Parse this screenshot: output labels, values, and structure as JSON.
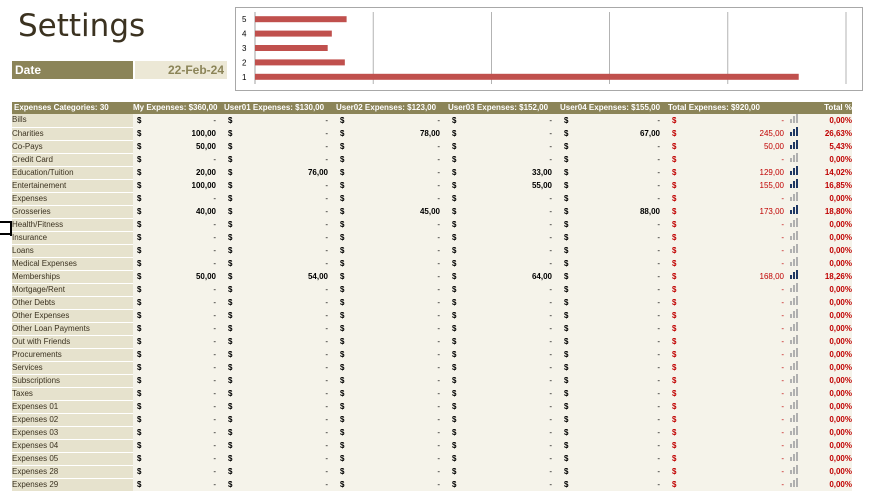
{
  "title": "Settings",
  "date": {
    "label": "Date",
    "value": "22-Feb-24"
  },
  "chart_data": {
    "type": "bar",
    "orientation": "horizontal",
    "categories": [
      "1",
      "2",
      "3",
      "4",
      "5"
    ],
    "values": [
      920,
      152,
      123,
      130,
      155
    ],
    "xlim": [
      0,
      1000
    ],
    "grid": true,
    "colors": {
      "bar": "#c0504d",
      "grid": "#a0a0a0"
    }
  },
  "table": {
    "headers": [
      "Expenses Categories: 30",
      "My Expenses: $360,00",
      "User01 Expenses: $130,00",
      "User02 Expenses: $123,00",
      "User03 Expenses: $152,00",
      "User04 Expenses: $155,00",
      "Total Expenses: $920,00",
      "",
      "Total %"
    ],
    "rows": [
      {
        "cat": "Bills",
        "my": "-",
        "u1": "-",
        "u2": "-",
        "u3": "-",
        "u4": "-",
        "total": "-",
        "icon": "light",
        "pct": "0,00%"
      },
      {
        "cat": "Charities",
        "my": "100,00",
        "u1": "-",
        "u2": "78,00",
        "u3": "-",
        "u4": "67,00",
        "total": "245,00",
        "icon": "dark",
        "pct": "26,63%"
      },
      {
        "cat": "Co-Pays",
        "my": "50,00",
        "u1": "-",
        "u2": "-",
        "u3": "-",
        "u4": "-",
        "total": "50,00",
        "icon": "dark",
        "pct": "5,43%"
      },
      {
        "cat": "Credit Card",
        "my": "-",
        "u1": "-",
        "u2": "-",
        "u3": "-",
        "u4": "-",
        "total": "-",
        "icon": "light",
        "pct": "0,00%"
      },
      {
        "cat": "Education/Tuition",
        "my": "20,00",
        "u1": "76,00",
        "u2": "-",
        "u3": "33,00",
        "u4": "-",
        "total": "129,00",
        "icon": "dark",
        "pct": "14,02%"
      },
      {
        "cat": "Entertainement",
        "my": "100,00",
        "u1": "-",
        "u2": "-",
        "u3": "55,00",
        "u4": "-",
        "total": "155,00",
        "icon": "dark",
        "pct": "16,85%"
      },
      {
        "cat": "Expenses",
        "my": "-",
        "u1": "-",
        "u2": "-",
        "u3": "-",
        "u4": "-",
        "total": "-",
        "icon": "light",
        "pct": "0,00%"
      },
      {
        "cat": "Grosseries",
        "my": "40,00",
        "u1": "-",
        "u2": "45,00",
        "u3": "-",
        "u4": "88,00",
        "total": "173,00",
        "icon": "dark",
        "pct": "18,80%"
      },
      {
        "cat": "Health/Fitness",
        "my": "-",
        "u1": "-",
        "u2": "-",
        "u3": "-",
        "u4": "-",
        "total": "-",
        "icon": "light",
        "pct": "0,00%"
      },
      {
        "cat": "Insurance",
        "my": "-",
        "u1": "-",
        "u2": "-",
        "u3": "-",
        "u4": "-",
        "total": "-",
        "icon": "light",
        "pct": "0,00%"
      },
      {
        "cat": "Loans",
        "my": "-",
        "u1": "-",
        "u2": "-",
        "u3": "-",
        "u4": "-",
        "total": "-",
        "icon": "light",
        "pct": "0,00%"
      },
      {
        "cat": "Medical Expenses",
        "my": "-",
        "u1": "-",
        "u2": "-",
        "u3": "-",
        "u4": "-",
        "total": "-",
        "icon": "light",
        "pct": "0,00%"
      },
      {
        "cat": "Memberships",
        "my": "50,00",
        "u1": "54,00",
        "u2": "-",
        "u3": "64,00",
        "u4": "-",
        "total": "168,00",
        "icon": "dark",
        "pct": "18,26%"
      },
      {
        "cat": "Mortgage/Rent",
        "my": "-",
        "u1": "-",
        "u2": "-",
        "u3": "-",
        "u4": "-",
        "total": "-",
        "icon": "light",
        "pct": "0,00%"
      },
      {
        "cat": "Other Debts",
        "my": "-",
        "u1": "-",
        "u2": "-",
        "u3": "-",
        "u4": "-",
        "total": "-",
        "icon": "light",
        "pct": "0,00%"
      },
      {
        "cat": "Other Expenses",
        "my": "-",
        "u1": "-",
        "u2": "-",
        "u3": "-",
        "u4": "-",
        "total": "-",
        "icon": "light",
        "pct": "0,00%"
      },
      {
        "cat": "Other Loan Payments",
        "my": "-",
        "u1": "-",
        "u2": "-",
        "u3": "-",
        "u4": "-",
        "total": "-",
        "icon": "light",
        "pct": "0,00%"
      },
      {
        "cat": "Out with Friends",
        "my": "-",
        "u1": "-",
        "u2": "-",
        "u3": "-",
        "u4": "-",
        "total": "-",
        "icon": "light",
        "pct": "0,00%"
      },
      {
        "cat": "Procurements",
        "my": "-",
        "u1": "-",
        "u2": "-",
        "u3": "-",
        "u4": "-",
        "total": "-",
        "icon": "light",
        "pct": "0,00%"
      },
      {
        "cat": "Services",
        "my": "-",
        "u1": "-",
        "u2": "-",
        "u3": "-",
        "u4": "-",
        "total": "-",
        "icon": "light",
        "pct": "0,00%"
      },
      {
        "cat": "Subscriptions",
        "my": "-",
        "u1": "-",
        "u2": "-",
        "u3": "-",
        "u4": "-",
        "total": "-",
        "icon": "light",
        "pct": "0,00%"
      },
      {
        "cat": "Taxes",
        "my": "-",
        "u1": "-",
        "u2": "-",
        "u3": "-",
        "u4": "-",
        "total": "-",
        "icon": "light",
        "pct": "0,00%"
      },
      {
        "cat": "Expenses 01",
        "my": "-",
        "u1": "-",
        "u2": "-",
        "u3": "-",
        "u4": "-",
        "total": "-",
        "icon": "light",
        "pct": "0,00%"
      },
      {
        "cat": "Expenses 02",
        "my": "-",
        "u1": "-",
        "u2": "-",
        "u3": "-",
        "u4": "-",
        "total": "-",
        "icon": "light",
        "pct": "0,00%"
      },
      {
        "cat": "Expenses 03",
        "my": "-",
        "u1": "-",
        "u2": "-",
        "u3": "-",
        "u4": "-",
        "total": "-",
        "icon": "light",
        "pct": "0,00%"
      },
      {
        "cat": "Expenses 04",
        "my": "-",
        "u1": "-",
        "u2": "-",
        "u3": "-",
        "u4": "-",
        "total": "-",
        "icon": "light",
        "pct": "0,00%"
      },
      {
        "cat": "Expenses 05",
        "my": "-",
        "u1": "-",
        "u2": "-",
        "u3": "-",
        "u4": "-",
        "total": "-",
        "icon": "light",
        "pct": "0,00%"
      },
      {
        "cat": "Expenses 28",
        "my": "-",
        "u1": "-",
        "u2": "-",
        "u3": "-",
        "u4": "-",
        "total": "-",
        "icon": "light",
        "pct": "0,00%"
      },
      {
        "cat": "Expenses 29",
        "my": "-",
        "u1": "-",
        "u2": "-",
        "u3": "-",
        "u4": "-",
        "total": "-",
        "icon": "light",
        "pct": "0,00%"
      }
    ],
    "currency_symbol": "$",
    "colors": {
      "header_bg": "#8b8458",
      "category_bg": "#e6e2cd",
      "total_text": "#c00000",
      "icon_dark": "#1f3864",
      "icon_light": "#b0b0b0"
    }
  }
}
